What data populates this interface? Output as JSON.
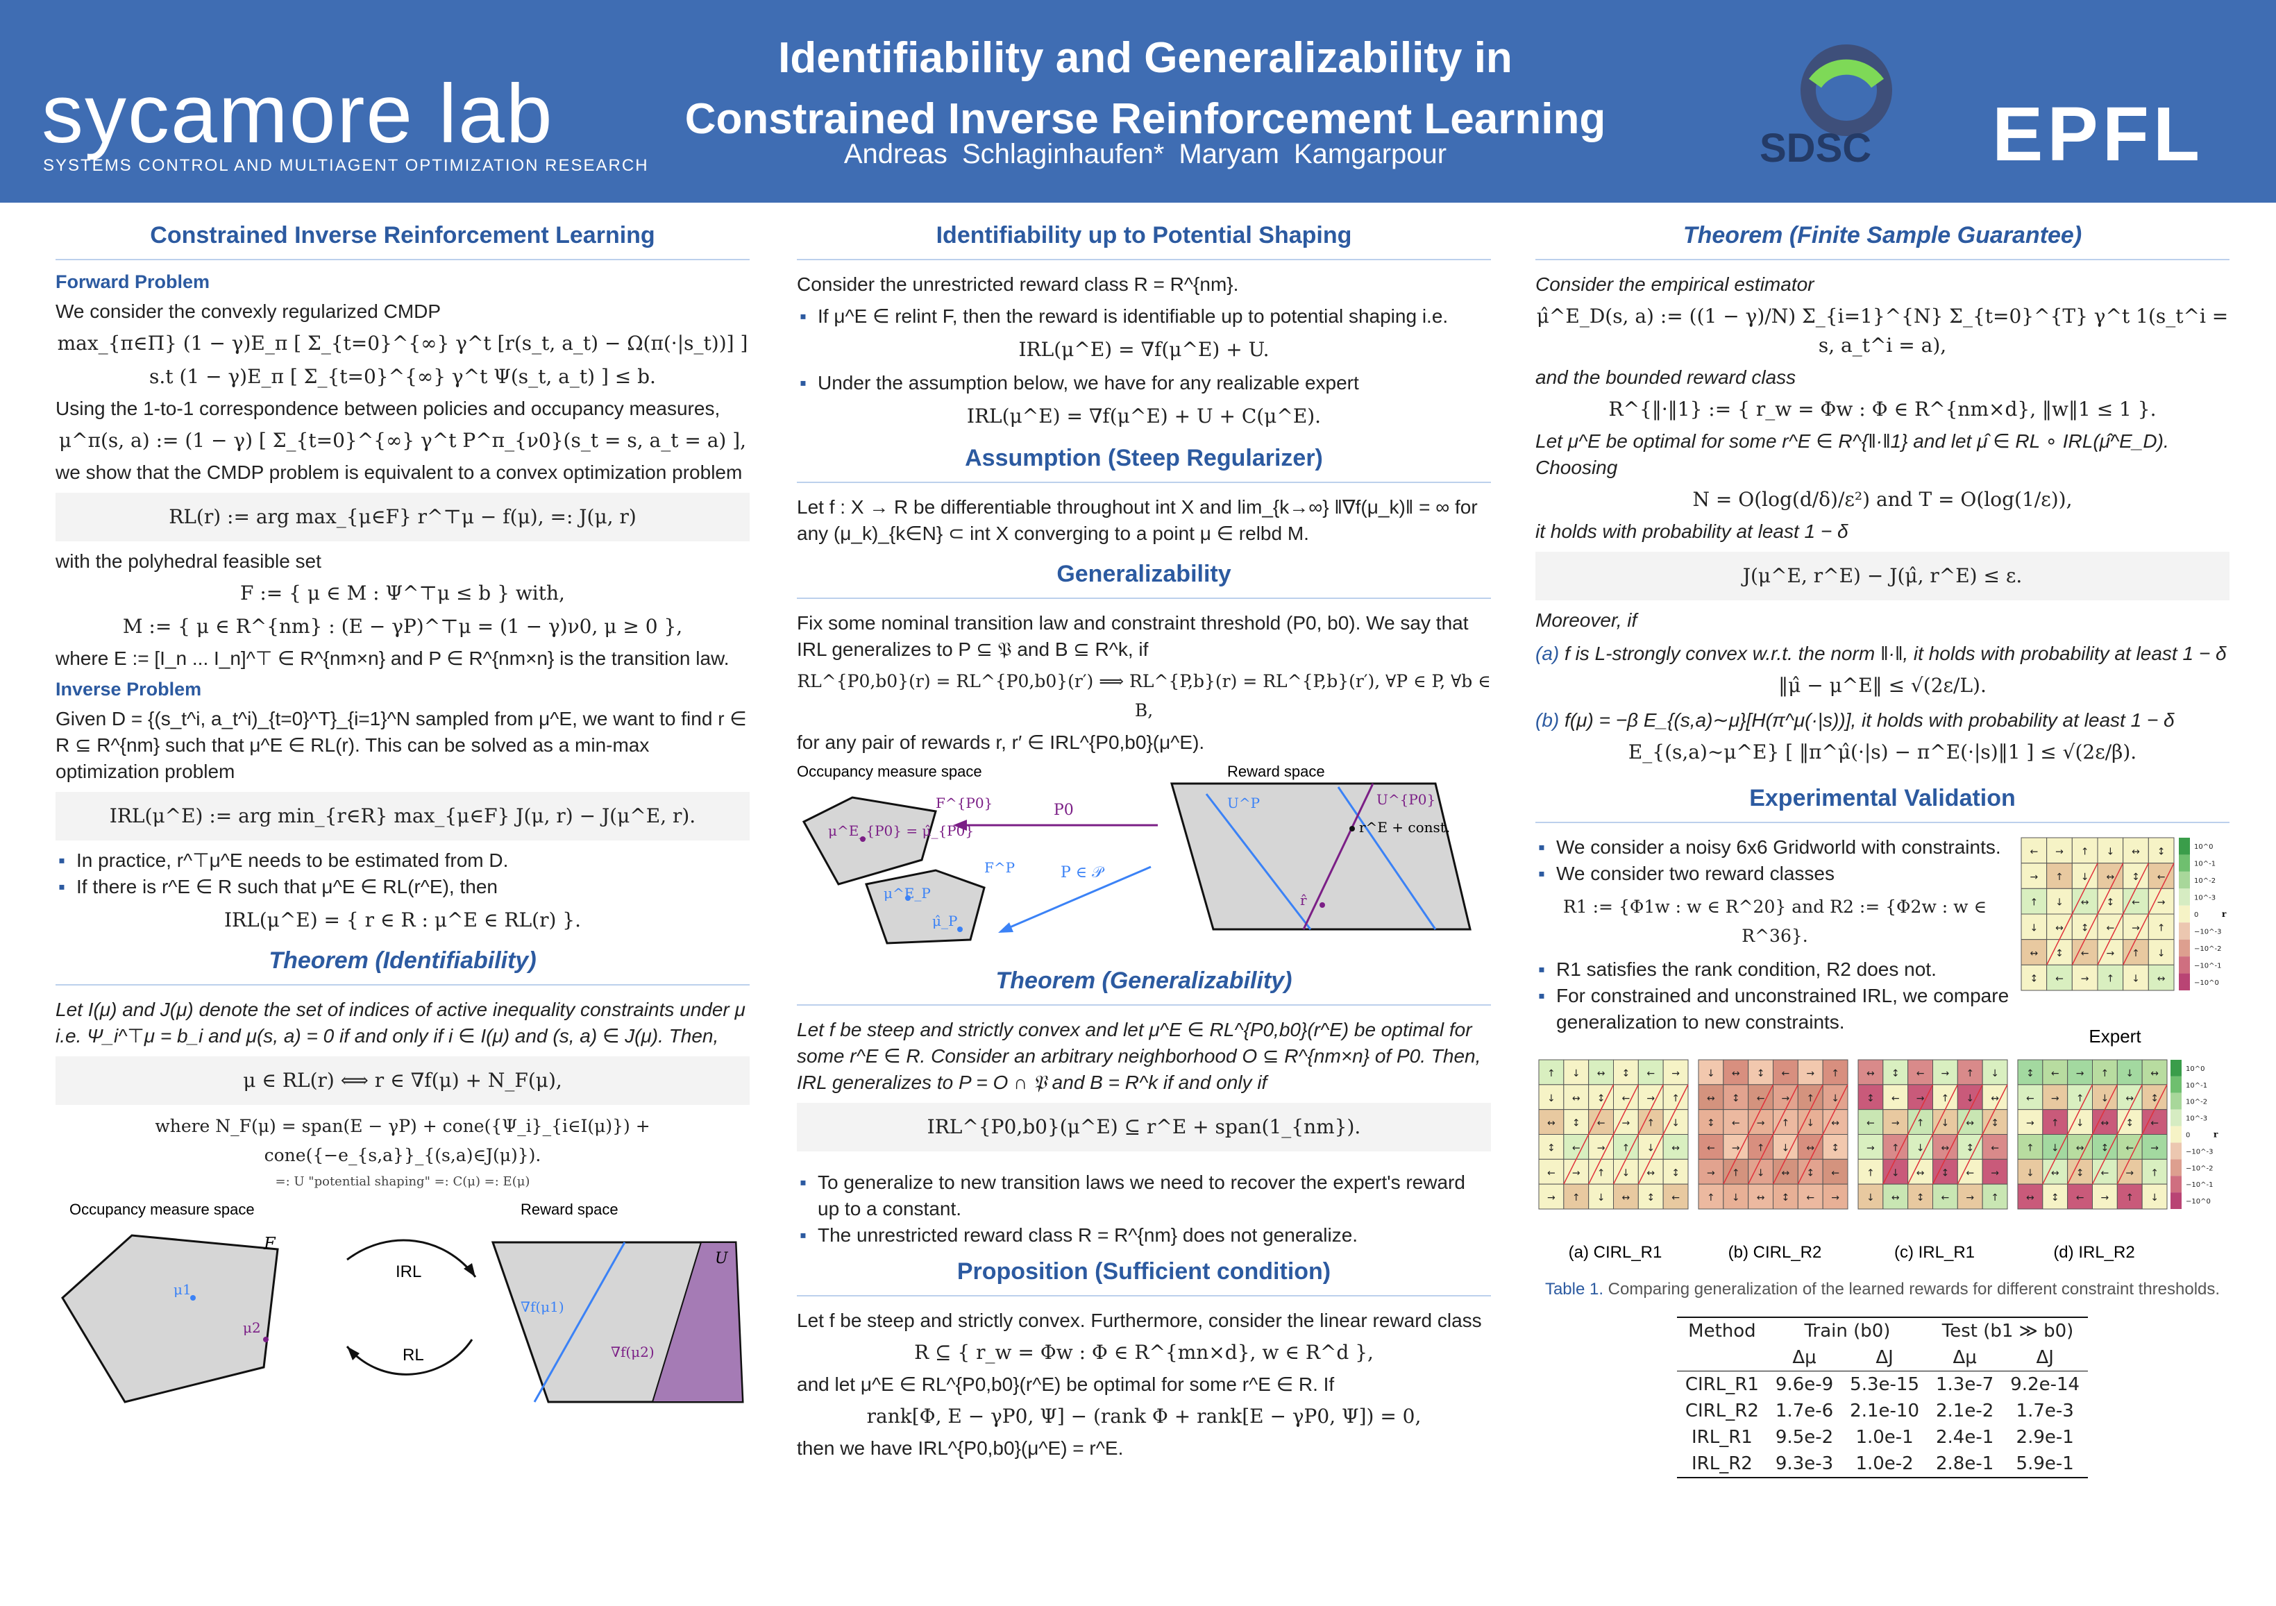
{
  "header": {
    "logo": "sycamore lab",
    "logo_sub": "SYSTEMS CONTROL AND MULTIAGENT OPTIMIZATION RESEARCH",
    "title_line1": "Identifiability and Generalizability in",
    "title_line2": "Constrained Inverse Reinforcement Learning",
    "authors": "Andreas Schlaginhaufen*   Maryam Kamgarpour",
    "sdsc": "SDSC",
    "epfl": "EPFL"
  },
  "col1": {
    "h_cirl": "Constrained Inverse Reinforcement Learning",
    "h_forward": "Forward Problem",
    "p_convex": "We consider the convexly regularized CMDP",
    "eq_cmdp1": "max_{π∈Π}  (1 − γ)E_π [ Σ_{t=0}^{∞} γ^t [r(s_t, a_t) − Ω(π(·|s_t))] ]",
    "eq_cmdp2": "s.t   (1 − γ)E_π [ Σ_{t=0}^{∞} γ^t Ψ(s_t, a_t) ] ≤ b.",
    "p_corr": "Using the 1-to-1 correspondence between policies and occupancy measures,",
    "eq_occ": "μ^π(s, a) := (1 − γ) [ Σ_{t=0}^{∞} γ^t P^π_{ν0}(s_t = s, a_t = a) ],",
    "p_equiv": "we show that the CMDP problem is equivalent to a convex optimization problem",
    "eq_rl": "RL(r) := arg max_{μ∈F} r^⊤μ − f(μ),   =: J(μ, r)",
    "p_poly": "with the polyhedral feasible set",
    "eq_F": "F := { μ ∈ M :  Ψ^⊤μ ≤ b }   with,",
    "eq_M": "M := { μ ∈ R^{nm} : (E − γP)^⊤μ = (1 − γ)ν0,  μ ≥ 0 },",
    "p_where": "where E := [I_n ... I_n]^⊤ ∈ R^{nm×n} and P ∈ R^{nm×n} is the transition law.",
    "h_inverse": "Inverse Problem",
    "p_given": "Given D = {(s_t^i, a_t^i)_{t=0}^T}_{i=1}^N sampled from μ^E, we want to find r ∈ R ⊆ R^{nm} such that μ^E ∈ RL(r). This can be solved as a min-max optimization problem",
    "eq_irl": "IRL(μ^E) := arg min_{r∈R} max_{μ∈F}  J(μ, r) − J(μ^E, r).",
    "b1": "In practice, r^⊤μ^E needs to be estimated from D.",
    "b2": "If there is r^E ∈ R such that μ^E ∈ RL(r^E), then",
    "eq_irlset": "IRL(μ^E) = { r ∈ R : μ^E ∈ RL(r) }.",
    "h_ident": "Theorem (Identifiability)",
    "p_ident": "Let I(μ) and J(μ) denote the set of indices of active inequality constraints under μ i.e. Ψ_i^⊤μ = b_i and μ(s, a) = 0 if and only if i ∈ I(μ) and (s, a) ∈ J(μ). Then,",
    "eq_ident": "μ ∈ RL(r)  ⟺  r ∈ ∇f(μ) + N_F(μ),",
    "eq_nf": "where N_F(μ) = span(E − γP) + cone({Ψ_i}_{i∈I(μ)}) + cone({−e_{s,a}}_{(s,a)∈J(μ)}).",
    "eq_nf_sub": "=: U \"potential shaping\"     =: C(μ)     =: E(μ)",
    "fig_occ": "Occupancy measure space",
    "fig_rew": "Reward space",
    "fig_F": "F",
    "fig_U": "U",
    "fig_mu1": "μ1",
    "fig_mu2": "μ2",
    "fig_irl": "IRL",
    "fig_rl": "RL",
    "fig_g1": "∇f(μ1)",
    "fig_g2": "∇f(μ2)"
  },
  "col2": {
    "h_pot": "Identifiability up to Potential Shaping",
    "p_unres": "Consider the unrestricted reward class R = R^{nm}.",
    "b_relint": "If μ^E ∈ relint F, then the reward is identifiable up to potential shaping i.e.",
    "eq_relint": "IRL(μ^E) = ∇f(μ^E) + U.",
    "b_assume": "Under the assumption below, we have for any realizable expert",
    "eq_assume": "IRL(μ^E) = ∇f(μ^E) + U + C(μ^E).",
    "h_steep": "Assumption (Steep Regularizer)",
    "p_steep": "Let f : X → R be differentiable throughout int X and lim_{k→∞} ‖∇f(μ_k)‖ = ∞ for any (μ_k)_{k∈N} ⊂ int X converging to a point μ ∈ relbd M.",
    "h_gen": "Generalizability",
    "p_gen": "Fix some nominal transition law and constraint threshold (P0, b0). We say that IRL generalizes to P ⊆ 𝔓 and B ⊆ R^k, if",
    "eq_gen": "RL^{P0,b0}(r) = RL^{P0,b0}(r′)  ⟹  RL^{P,b}(r) = RL^{P,b}(r′),  ∀P ∈ P, ∀b ∈ B,",
    "p_pair": "for any pair of rewards r, r′ ∈ IRL^{P0,b0}(μ^E).",
    "fig_occ": "Occupancy measure space",
    "fig_rew": "Reward space",
    "fig_mue": "μ^E_{P0} = μ̂_{P0}",
    "fig_FP0": "F^{P0}",
    "fig_FP": "F^P",
    "fig_P0": "P0",
    "fig_PinP": "P ∈ 𝒫",
    "fig_muep": "μ^E_P",
    "fig_muhatp": "μ̂_P",
    "fig_UP": "U^P",
    "fig_UP0": "U^{P0}",
    "fig_re": "r^E + const.",
    "fig_rhat": "r̂",
    "h_thm_gen": "Theorem (Generalizability)",
    "p_thm_gen": "Let f be steep and strictly convex and let μ^E ∈ RL^{P0,b0}(r^E) be optimal for some r^E ∈ R. Consider an arbitrary neighborhood O ⊆ R^{nm×n} of P0. Then, IRL generalizes to P = O ∩ 𝔓 and B = R^k if and only if",
    "eq_thm_gen": "IRL^{P0,b0}(μ^E) ⊆ r^E + span(1_{nm}).",
    "b_gen1": "To generalize to new transition laws we need to recover the expert's reward up to a constant.",
    "b_gen2": "The unrestricted reward class R = R^{nm} does not generalize.",
    "h_prop": "Proposition (Sufficient condition)",
    "p_prop1": "Let f be steep and strictly convex. Furthermore, consider the linear reward class",
    "eq_prop1": "R ⊆ { r_w = Φw : Φ ∈ R^{mn×d}, w ∈ R^d },",
    "p_prop2": "and let μ^E ∈ RL^{P0,b0}(r^E) be optimal for some r^E ∈ R. If",
    "eq_prop2": "rank[Φ, E − γP0, Ψ] − (rank Φ + rank[E − γP0, Ψ]) = 0,",
    "p_prop3": "then we have IRL^{P0,b0}(μ^E) = r^E."
  },
  "col3": {
    "h_finite": "Theorem (Finite Sample Guarantee)",
    "p_emp": "Consider the empirical estimator",
    "eq_emp": "μ̂^E_D(s, a) := ((1 − γ)/N) Σ_{i=1}^{N} Σ_{t=0}^{T} γ^t 1(s_t^i = s, a_t^i = a),",
    "p_bounded": "and the bounded reward class",
    "eq_bounded": "R^{‖·‖1} := { r_w = Φw : Φ ∈ R^{nm×d}, ‖w‖1 ≤ 1 }.",
    "p_let": "Let μ^E be optimal for some r^E ∈ R^{‖·‖1} and let μ̂ ∈ RL ∘ IRL(μ̂^E_D). Choosing",
    "eq_choose": "N = O(log(d/δ)/ε²)   and   T = O(log(1/ε)),",
    "p_prob": "it holds with probability at least 1 − δ",
    "eq_bound": "J(μ^E, r^E) − J(μ̂, r^E) ≤ ε.",
    "p_moreover": "Moreover, if",
    "a_label": "(a)",
    "a_text": "f is L-strongly convex w.r.t. the norm ‖·‖, it holds with probability at least 1 − δ",
    "eq_a": "‖μ̂ − μ^E‖ ≤ √(2ε/L).",
    "b_label": "(b)",
    "b_text": "f(μ) = −β E_{(s,a)∼μ}[H(π^μ(·|s))], it holds with probability at least 1 − δ",
    "eq_b": "E_{(s,a)∼μ^E} [ ‖π^μ̂(·|s) − π^E(·|s)‖1 ] ≤ √(2ε/β).",
    "h_exp": "Experimental Validation",
    "e1": "We consider a noisy 6x6 Gridworld with constraints.",
    "e2": "We consider two reward classes",
    "eq_e2": "R1 := {Φ1w : w ∈ R^20} and R2 := {Φ2w : w ∈ R^36}.",
    "e3": "R1 satisfies the rank condition, R2 does not.",
    "e4": "For constrained and unconstrained IRL, we compare generalization to new constraints.",
    "expert": "Expert",
    "cb_labels": [
      "10^0",
      "10^-1",
      "10^-2",
      "10^-3",
      "0",
      "−10^-3",
      "−10^-2",
      "−10^-1",
      "−10^0"
    ],
    "cb_r": "r",
    "grid_caps": [
      "(a) CIRL_R1",
      "(b) CIRL_R2",
      "(c) IRL_R1",
      "(d) IRL_R2"
    ],
    "table_caption_label": "Table 1.",
    "table_caption": "Comparing generalization of the learned rewards for different constraint thresholds.",
    "table_head1": [
      "Method",
      "Train (b0)",
      "Test (b1 ≫ b0)"
    ],
    "table_head2": [
      "",
      "Δμ",
      "ΔJ",
      "Δμ",
      "ΔJ"
    ],
    "table_rows": [
      [
        "CIRL_R1",
        "9.6e-9",
        "5.3e-15",
        "1.3e-7",
        "9.2e-14"
      ],
      [
        "CIRL_R2",
        "1.7e-6",
        "2.1e-10",
        "2.1e-2",
        "1.7e-3"
      ],
      [
        "IRL_R1",
        "9.5e-2",
        "1.0e-1",
        "2.4e-1",
        "2.9e-1"
      ],
      [
        "IRL_R2",
        "9.3e-3",
        "1.0e-2",
        "2.8e-1",
        "5.9e-1"
      ]
    ]
  },
  "colors": {
    "header_bg": "#3f6db3",
    "heading": "#2c5aa0",
    "region_fill": "#d6d6d6",
    "purple": "#7b1f86",
    "blue_line": "#3b82f6"
  }
}
